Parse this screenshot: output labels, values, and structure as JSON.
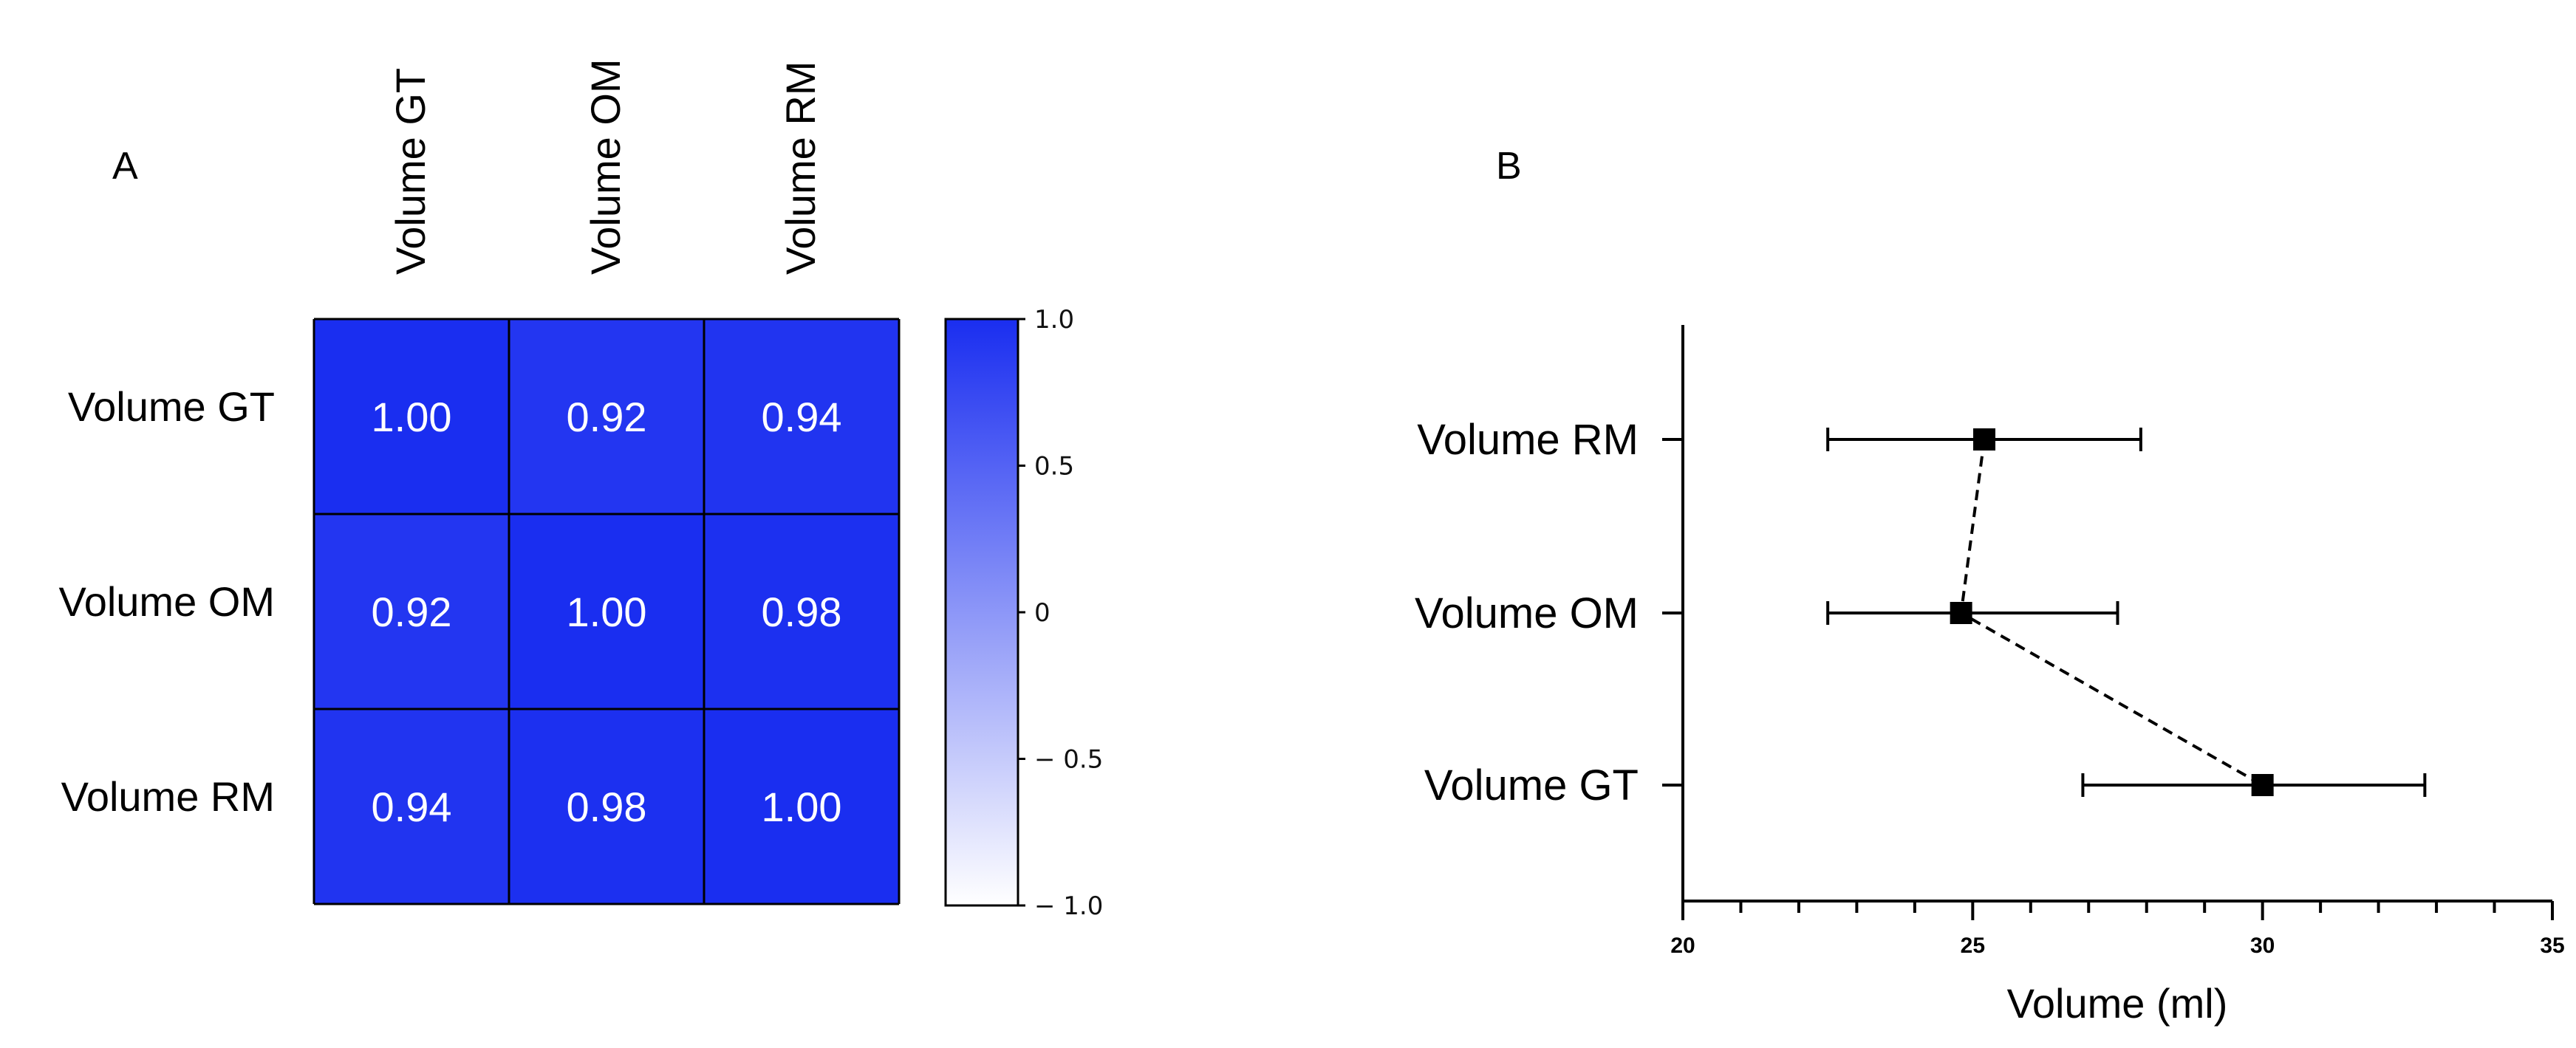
{
  "panels": {
    "a": "A",
    "b": "B"
  },
  "chart_data": [
    {
      "type": "heatmap",
      "panel": "A",
      "columns": [
        "Volume GT",
        "Volume OM",
        "Volume RM"
      ],
      "rows": [
        "Volume GT",
        "Volume OM",
        "Volume RM"
      ],
      "values": [
        [
          1.0,
          0.92,
          0.94
        ],
        [
          0.92,
          1.0,
          0.98
        ],
        [
          0.94,
          0.98,
          1.0
        ]
      ],
      "value_labels": [
        [
          "1.00",
          "0.92",
          "0.94"
        ],
        [
          "0.92",
          "1.00",
          "0.98"
        ],
        [
          "0.94",
          "0.98",
          "1.00"
        ]
      ],
      "colorbar": {
        "range": [
          -1.0,
          1.0
        ],
        "ticks": [
          1.0,
          0.5,
          0,
          -0.5,
          -1.0
        ],
        "tick_labels": [
          "1.0",
          "0.5",
          "0",
          "− 0.5",
          "− 1.0"
        ],
        "low_color": "#ffffff",
        "high_color": "#1a2ef0"
      }
    },
    {
      "type": "scatter",
      "panel": "B",
      "categories": [
        "Volume RM",
        "Volume OM",
        "Volume GT"
      ],
      "means": [
        25.2,
        24.8,
        30.0
      ],
      "error_low": [
        22.5,
        22.5,
        26.9
      ],
      "error_high": [
        27.9,
        27.5,
        32.8
      ],
      "connector": "dashed",
      "xlabel": "Volume (ml)",
      "xlim": [
        20,
        35
      ],
      "xticks": [
        20,
        25,
        30,
        35
      ],
      "xticklabels": [
        "20",
        "25",
        "30",
        "35"
      ],
      "marker_color": "#000000"
    }
  ]
}
